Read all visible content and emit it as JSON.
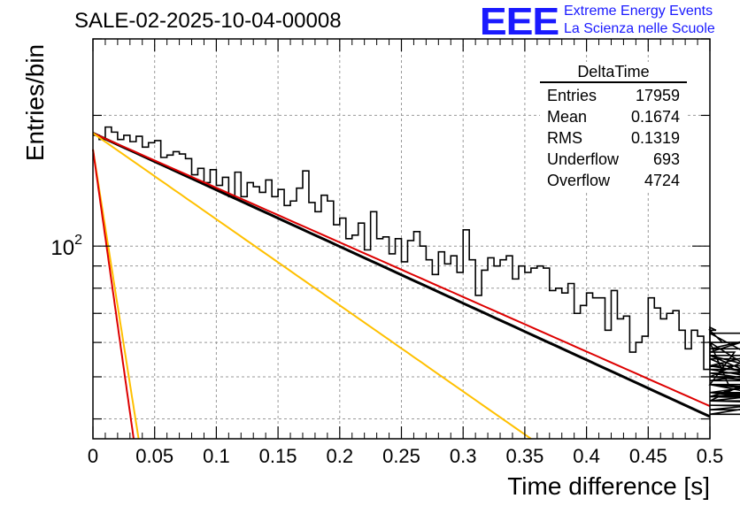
{
  "header": {
    "title": "SALE-02-2025-10-04-00008",
    "logo_mark": "EEE",
    "logo_line1": "Extreme Energy Events",
    "logo_line2": "La Scienza nelle Scuole"
  },
  "stats": {
    "title": "DeltaTime",
    "rows": [
      {
        "label": "Entries",
        "value": "17959"
      },
      {
        "label": "Mean",
        "value": "0.1674"
      },
      {
        "label": "RMS",
        "value": "0.1319"
      },
      {
        "label": "Underflow",
        "value": "693"
      },
      {
        "label": "Overflow",
        "value": "4724"
      }
    ]
  },
  "chart_data": {
    "type": "line",
    "title": "SALE-02-2025-10-04-00008",
    "xlabel": "Time difference [s]",
    "ylabel": "Entries/bin",
    "xlim": [
      0,
      0.5
    ],
    "ylim": [
      36,
      300
    ],
    "yscale": "log",
    "grid": true,
    "x_ticks": [
      0,
      0.05,
      0.1,
      0.15,
      0.2,
      0.25,
      0.3,
      0.35,
      0.4,
      0.45,
      0.5
    ],
    "x_tick_labels": [
      "0",
      "0.05",
      "0.1",
      "0.15",
      "0.2",
      "0.25",
      "0.3",
      "0.35",
      "0.4",
      "0.45",
      "0.5"
    ],
    "y_tick_labels": [
      {
        "value": 100,
        "label": "10",
        "sup": "2"
      }
    ],
    "histogram": {
      "name": "DeltaTime",
      "color": "#000000",
      "bin_width": 0.005,
      "values": [
        180,
        176,
        188,
        183,
        176,
        180,
        174,
        179,
        169,
        173,
        175,
        160,
        162,
        165,
        163,
        159,
        146,
        151,
        140,
        150,
        138,
        144,
        130,
        148,
        130,
        140,
        137,
        133,
        142,
        130,
        135,
        124,
        127,
        136,
        149,
        126,
        120,
        131,
        127,
        112,
        116,
        104,
        106,
        113,
        98,
        120,
        104,
        105,
        96,
        104,
        92,
        103,
        108,
        100,
        93,
        86,
        97,
        91,
        95,
        87,
        109,
        93,
        77,
        88,
        94,
        90,
        93,
        95,
        84,
        90,
        87,
        89,
        90,
        89,
        79,
        80,
        78,
        82,
        70,
        73,
        78,
        76,
        76,
        64,
        79,
        68,
        69,
        57,
        60,
        62,
        76,
        72,
        68,
        70,
        71,
        64,
        58,
        64,
        62,
        52,
        65,
        64,
        60,
        48,
        57,
        60,
        53,
        56,
        50,
        50,
        58,
        63,
        51,
        48,
        44,
        56,
        49,
        53,
        48,
        45,
        55,
        41,
        46,
        51,
        52,
        45,
        44,
        43,
        42,
        46,
        41,
        48,
        45,
        50,
        46,
        44,
        50,
        45,
        48
      ]
    },
    "fits": [
      {
        "name": "total-fit",
        "color": "#000000",
        "kind": "exp",
        "y0": 182,
        "y_end": 40.5,
        "x_from": 0,
        "x_to": 0.5
      },
      {
        "name": "slow-component",
        "color": "#dd0000",
        "kind": "exp",
        "y0": 182,
        "y_end": 42.8,
        "x_from": 0,
        "x_to": 0.5
      },
      {
        "name": "medium-component",
        "color": "#ffc000",
        "kind": "exp",
        "y0": 182,
        "y_end": 36,
        "x_from": 0,
        "x_to": 0.355
      },
      {
        "name": "fast-component-yellow",
        "color": "#ffc000",
        "kind": "exp",
        "y0": 167,
        "y_end": 36,
        "x_from": 0,
        "x_to": 0.037
      },
      {
        "name": "fast-component-red",
        "color": "#dd0000",
        "kind": "exp",
        "y0": 167,
        "y_end": 36,
        "x_from": 0,
        "x_to": 0.033
      }
    ]
  }
}
